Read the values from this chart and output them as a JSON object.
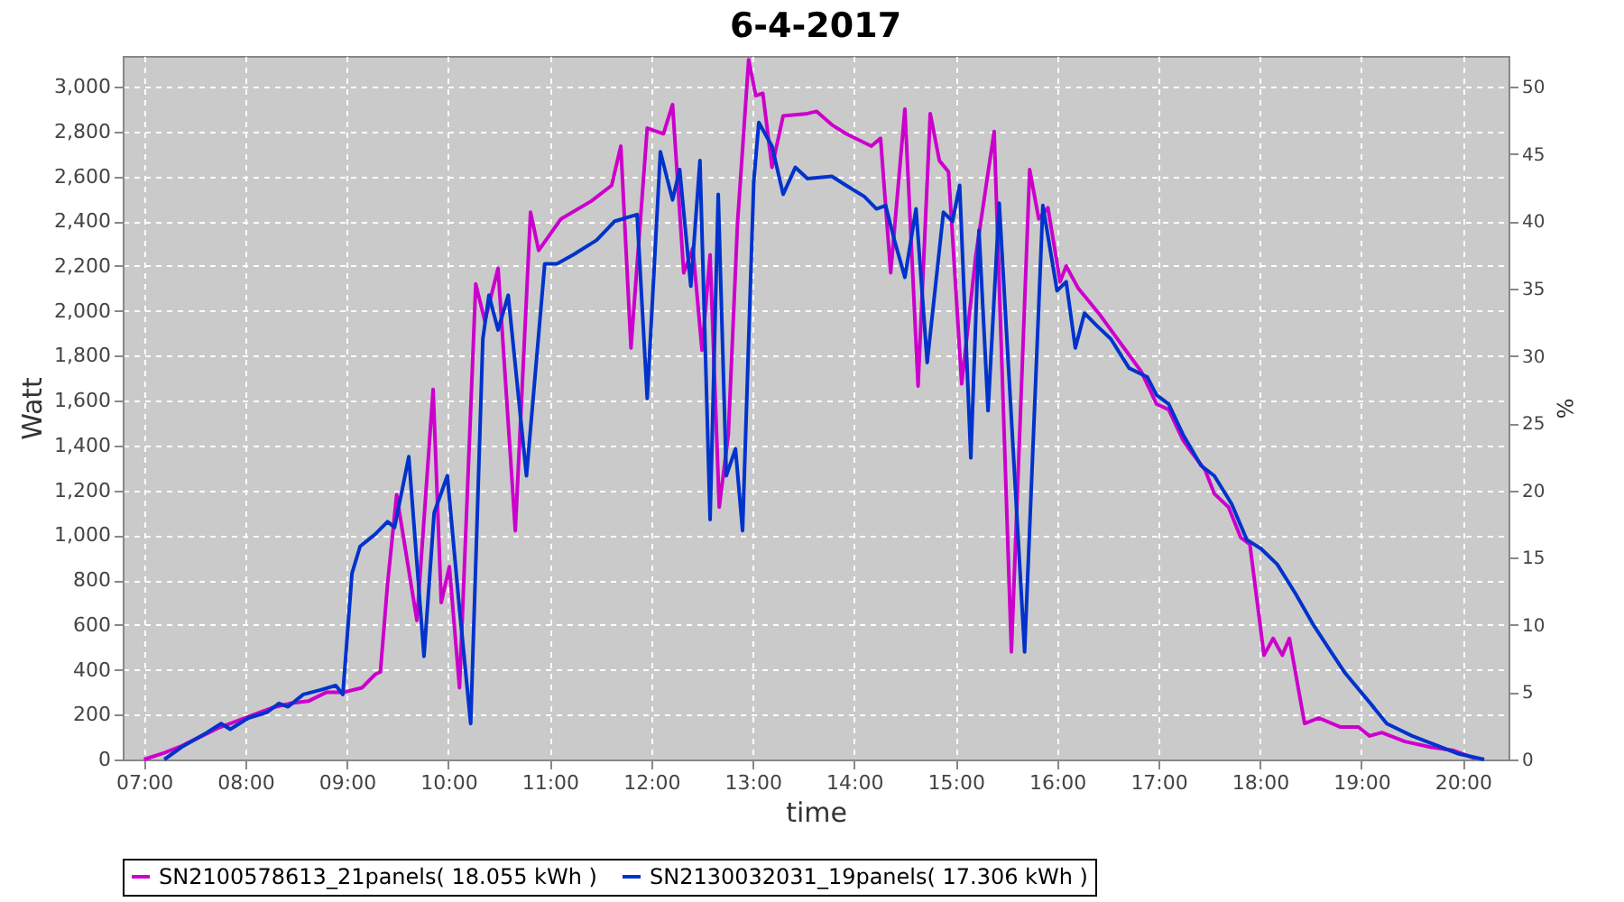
{
  "chart_data": {
    "type": "line",
    "title": "6-4-2017",
    "xlabel": "time",
    "ylabel": "Watt",
    "y2label": "%",
    "xlim": [
      6.79,
      20.45
    ],
    "xticks": [
      {
        "value": 7,
        "label": "07:00"
      },
      {
        "value": 8,
        "label": "08:00"
      },
      {
        "value": 9,
        "label": "09:00"
      },
      {
        "value": 10,
        "label": "10:00"
      },
      {
        "value": 11,
        "label": "11:00"
      },
      {
        "value": 12,
        "label": "12:00"
      },
      {
        "value": 13,
        "label": "13:00"
      },
      {
        "value": 14,
        "label": "14:00"
      },
      {
        "value": 15,
        "label": "15:00"
      },
      {
        "value": 16,
        "label": "16:00"
      },
      {
        "value": 17,
        "label": "17:00"
      },
      {
        "value": 18,
        "label": "18:00"
      },
      {
        "value": 19,
        "label": "19:00"
      },
      {
        "value": 20,
        "label": "20:00"
      }
    ],
    "ylim": [
      0,
      3137
    ],
    "yticks": [
      0,
      200,
      400,
      600,
      800,
      {
        "value": 1000,
        "label": "1,000"
      },
      {
        "value": 1200,
        "label": "1,200"
      },
      {
        "value": 1400,
        "label": "1,400"
      },
      {
        "value": 1600,
        "label": "1,600"
      },
      {
        "value": 1800,
        "label": "1,800"
      },
      {
        "value": 2000,
        "label": "2,000"
      },
      {
        "value": 2200,
        "label": "2,200"
      },
      {
        "value": 2400,
        "label": "2,400"
      },
      {
        "value": 2600,
        "label": "2,600"
      },
      {
        "value": 2800,
        "label": "2,800"
      },
      {
        "value": 3000,
        "label": "3,000"
      }
    ],
    "y2lim": [
      0,
      52.3
    ],
    "y2ticks": [
      0,
      5,
      10,
      15,
      20,
      25,
      30,
      35,
      40,
      45,
      50
    ],
    "grid": true,
    "legend": "bottom",
    "marker": "none",
    "line_style": "solid",
    "series": [
      {
        "name": "SN2100578613_21panels( 18.055 kWh )",
        "color": "#cc00cc",
        "x": [
          7.0,
          7.2,
          7.37,
          7.55,
          7.73,
          7.91,
          8.08,
          8.26,
          8.44,
          8.62,
          8.8,
          8.97,
          9.15,
          9.28,
          9.33,
          9.4,
          9.49,
          9.69,
          9.85,
          9.93,
          10.01,
          10.11,
          10.27,
          10.36,
          10.49,
          10.66,
          10.81,
          10.89,
          11.11,
          11.41,
          11.61,
          11.7,
          11.8,
          11.96,
          12.12,
          12.21,
          12.32,
          12.41,
          12.5,
          12.58,
          12.67,
          12.76,
          12.85,
          12.96,
          13.03,
          13.1,
          13.19,
          13.3,
          13.54,
          13.63,
          13.78,
          13.92,
          14.17,
          14.26,
          14.36,
          14.5,
          14.63,
          14.75,
          14.84,
          14.93,
          15.06,
          15.2,
          15.38,
          15.55,
          15.73,
          15.82,
          15.91,
          16.03,
          16.09,
          16.21,
          16.41,
          16.66,
          16.83,
          16.98,
          17.1,
          17.24,
          17.3,
          17.46,
          17.55,
          17.69,
          17.81,
          17.9,
          18.04,
          18.13,
          18.22,
          18.29,
          18.44,
          18.58,
          18.79,
          18.97,
          19.08,
          19.2,
          19.43,
          19.68,
          19.91,
          20.12
        ],
        "values": [
          0,
          30,
          60,
          100,
          140,
          170,
          200,
          230,
          250,
          260,
          300,
          300,
          320,
          380,
          390,
          780,
          1180,
          620,
          1650,
          700,
          860,
          320,
          2120,
          1955,
          2190,
          1020,
          2440,
          2270,
          2410,
          2490,
          2560,
          2735,
          1835,
          2815,
          2790,
          2920,
          2170,
          2280,
          1825,
          2250,
          1125,
          1450,
          2390,
          3120,
          2960,
          2970,
          2640,
          2870,
          2880,
          2890,
          2830,
          2790,
          2735,
          2770,
          2170,
          2900,
          1665,
          2880,
          2670,
          2620,
          1675,
          2250,
          2800,
          480,
          2630,
          2410,
          2460,
          2130,
          2200,
          2100,
          1990,
          1835,
          1730,
          1585,
          1560,
          1425,
          1385,
          1290,
          1185,
          1125,
          990,
          960,
          465,
          540,
          465,
          540,
          160,
          185,
          145,
          145,
          105,
          120,
          80,
          55,
          40,
          5
        ]
      },
      {
        "name": "SN2130032031_19panels( 17.306 kWh )",
        "color": "#0033cc",
        "x": [
          7.2,
          7.37,
          7.62,
          7.76,
          7.85,
          8.03,
          8.21,
          8.33,
          8.42,
          8.57,
          8.74,
          8.89,
          8.96,
          9.05,
          9.13,
          9.28,
          9.4,
          9.47,
          9.61,
          9.76,
          9.86,
          9.99,
          10.11,
          10.22,
          10.34,
          10.4,
          10.49,
          10.59,
          10.77,
          10.95,
          11.07,
          11.23,
          11.46,
          11.64,
          11.86,
          11.96,
          12.09,
          12.21,
          12.28,
          12.39,
          12.48,
          12.58,
          12.66,
          12.74,
          12.83,
          12.9,
          13.01,
          13.06,
          13.19,
          13.3,
          13.42,
          13.54,
          13.78,
          13.92,
          14.1,
          14.22,
          14.31,
          14.4,
          14.5,
          14.61,
          14.72,
          14.88,
          14.97,
          15.04,
          15.15,
          15.23,
          15.32,
          15.43,
          15.68,
          15.86,
          16.0,
          16.09,
          16.18,
          16.27,
          16.39,
          16.53,
          16.71,
          16.89,
          16.98,
          17.1,
          17.24,
          17.42,
          17.55,
          17.72,
          17.87,
          18.01,
          18.17,
          18.35,
          18.52,
          18.7,
          18.84,
          19.08,
          19.25,
          19.5,
          19.73,
          19.96,
          20.21
        ],
        "values": [
          0,
          55,
          120,
          160,
          135,
          185,
          210,
          250,
          235,
          290,
          310,
          330,
          290,
          830,
          950,
          1005,
          1060,
          1035,
          1350,
          460,
          1100,
          1265,
          670,
          160,
          1875,
          2070,
          1915,
          2070,
          1265,
          2210,
          2210,
          2250,
          2315,
          2400,
          2430,
          1610,
          2710,
          2495,
          2630,
          2110,
          2670,
          1070,
          2520,
          1265,
          1385,
          1020,
          2575,
          2840,
          2735,
          2520,
          2640,
          2590,
          2600,
          2560,
          2510,
          2455,
          2470,
          2310,
          2150,
          2455,
          1770,
          2440,
          2400,
          2560,
          1345,
          2360,
          1555,
          2480,
          480,
          2470,
          2090,
          2130,
          1835,
          1990,
          1935,
          1875,
          1745,
          1705,
          1625,
          1585,
          1450,
          1310,
          1265,
          1140,
          980,
          940,
          870,
          740,
          605,
          480,
          385,
          255,
          160,
          105,
          65,
          25,
          0
        ]
      }
    ]
  }
}
